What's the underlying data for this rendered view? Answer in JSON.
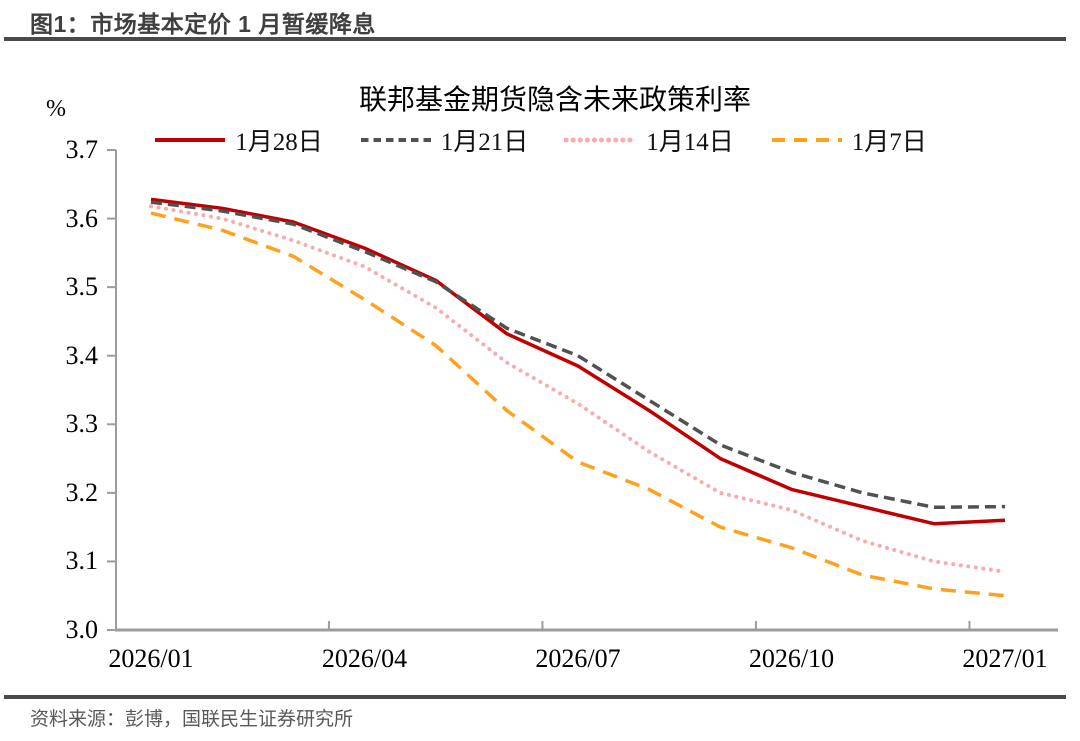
{
  "header": {
    "title": "图1：市场基本定价 1 月暂缓降息"
  },
  "footer": {
    "source": "资料来源：彭博，国联民生证券研究所"
  },
  "colors": {
    "rule": "#4a4a4a",
    "axis": "#9c9c9c",
    "red": "#c00000",
    "gray": "#515151",
    "pink": "#f7acad",
    "orange": "#ffa11e"
  },
  "chart_data": {
    "type": "line",
    "title": "联邦基金期货隐含未来政策利率",
    "ylabel": "%",
    "xlabel": "",
    "ylim": [
      3.0,
      3.7
    ],
    "ytick_labels": [
      "3.7",
      "3.6",
      "3.5",
      "3.4",
      "3.3",
      "3.2",
      "3.1",
      "3.0"
    ],
    "grid": false,
    "legend_position": "top",
    "categories": [
      "2026/01",
      "2026/02",
      "2026/03",
      "2026/04",
      "2026/05",
      "2026/06",
      "2026/07",
      "2026/08",
      "2026/09",
      "2026/10",
      "2026/11",
      "2026/12",
      "2027/01"
    ],
    "xtick_labels": [
      "2026/01",
      "2026/04",
      "2026/07",
      "2026/10",
      "2027/01"
    ],
    "xtick_label_indices": [
      0,
      3,
      6,
      9,
      12
    ],
    "series": [
      {
        "name": "1月28日",
        "color": "#c00000",
        "style": "solid",
        "values": [
          3.628,
          3.615,
          3.595,
          3.557,
          3.51,
          3.432,
          3.385,
          3.32,
          3.25,
          3.205,
          3.18,
          3.155,
          3.16
        ]
      },
      {
        "name": "1月21日",
        "color": "#515151",
        "style": "dashed",
        "values": [
          3.624,
          3.611,
          3.592,
          3.552,
          3.508,
          3.44,
          3.4,
          3.335,
          3.27,
          3.23,
          3.2,
          3.179,
          3.18
        ]
      },
      {
        "name": "1月14日",
        "color": "#f7acad",
        "style": "dotted",
        "values": [
          3.618,
          3.6,
          3.568,
          3.53,
          3.47,
          3.39,
          3.33,
          3.26,
          3.2,
          3.175,
          3.13,
          3.1,
          3.085
        ]
      },
      {
        "name": "1月7日",
        "color": "#ffa11e",
        "style": "long-dash",
        "values": [
          3.608,
          3.583,
          3.545,
          3.482,
          3.415,
          3.32,
          3.245,
          3.205,
          3.15,
          3.12,
          3.08,
          3.06,
          3.05
        ]
      }
    ]
  }
}
